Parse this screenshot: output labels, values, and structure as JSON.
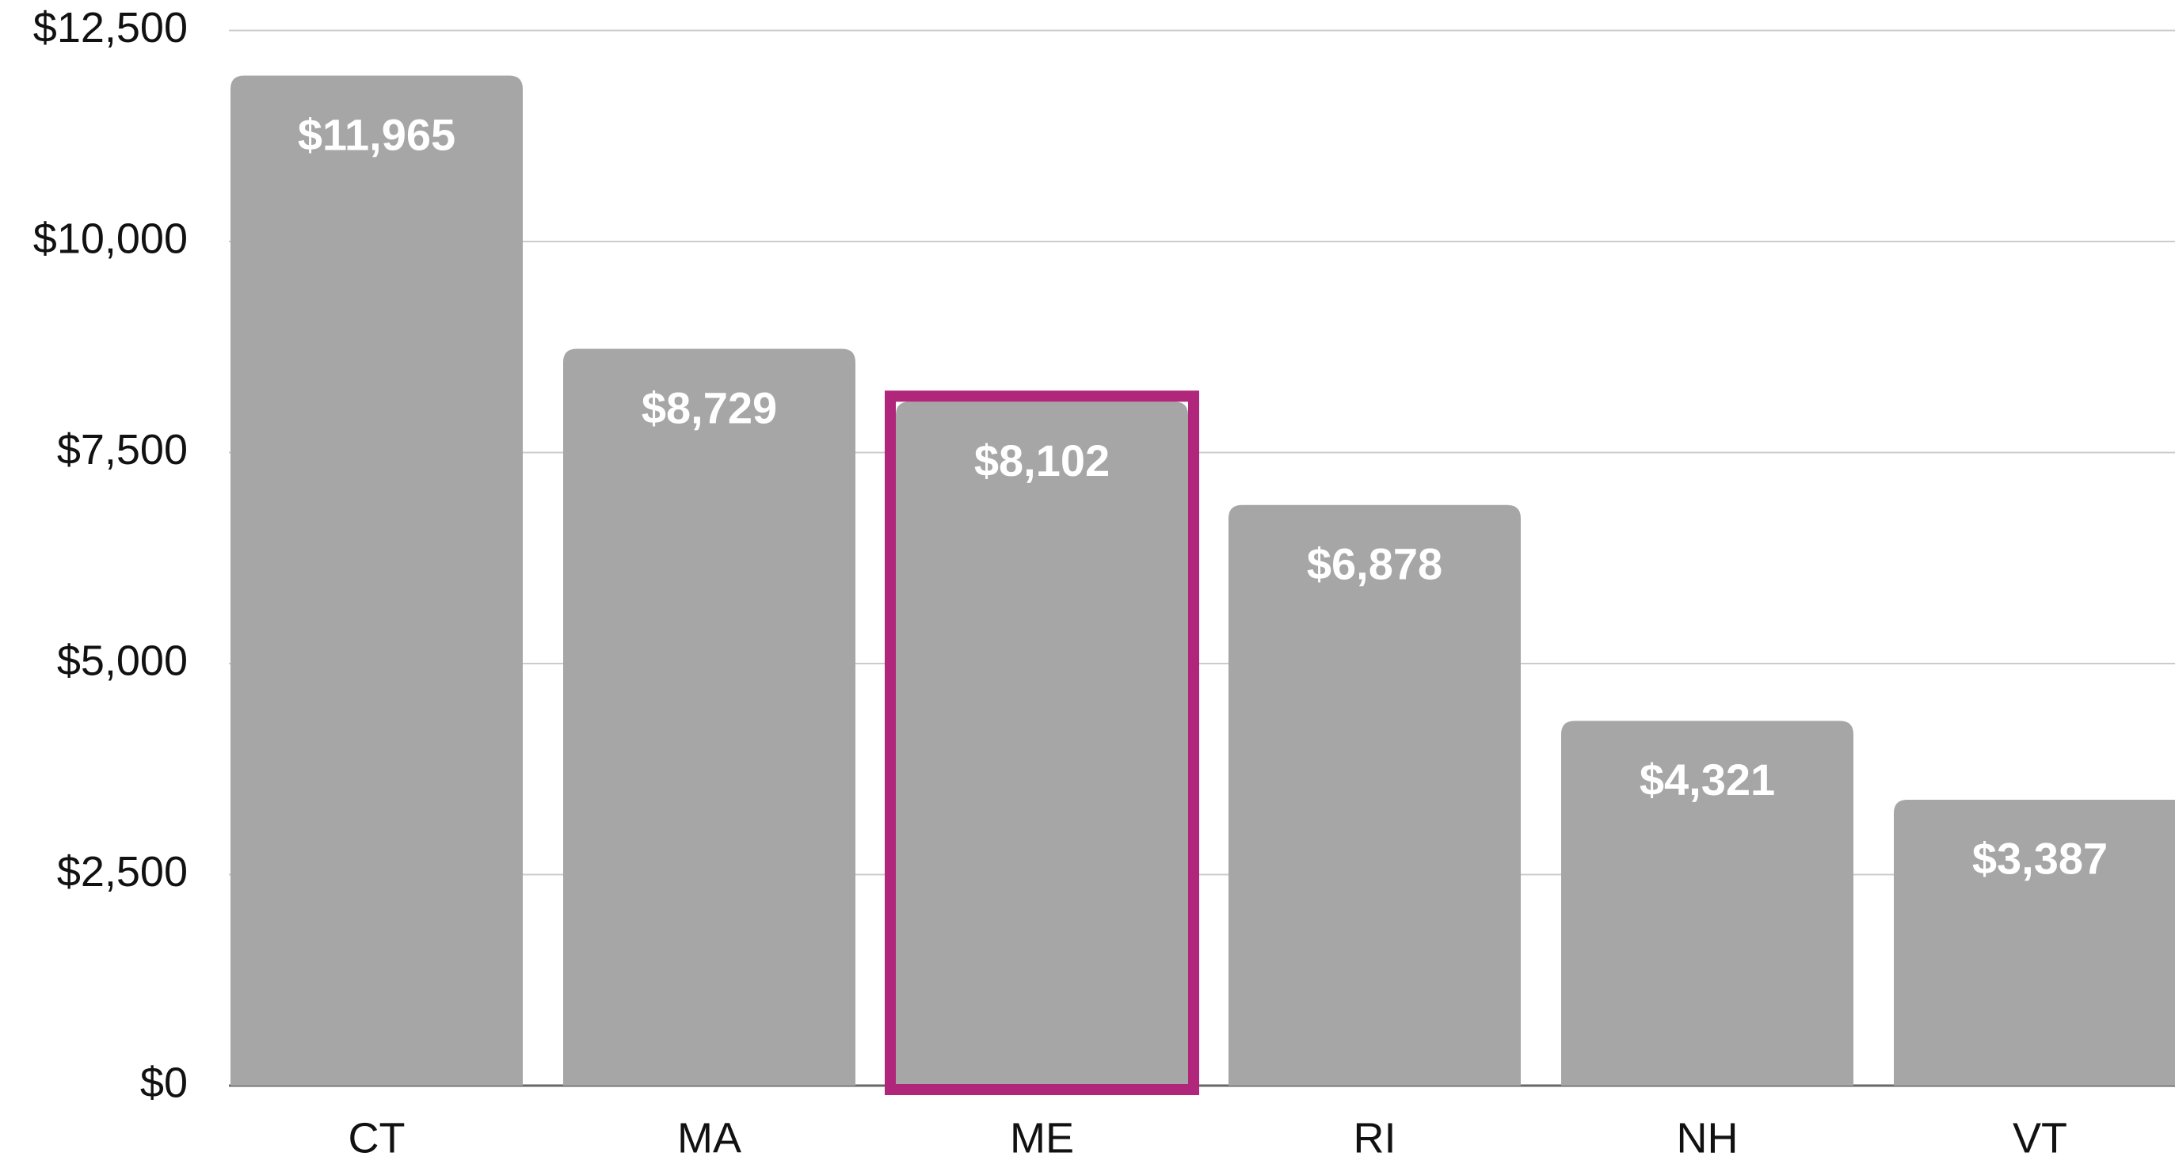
{
  "chart_data": {
    "type": "bar",
    "categories": [
      "CT",
      "MA",
      "ME",
      "RI",
      "NH",
      "VT"
    ],
    "values": [
      11965,
      8729,
      8102,
      6878,
      4321,
      3387
    ],
    "value_labels": [
      "$11,965",
      "$8,729",
      "$8,102",
      "$6,878",
      "$4,321",
      "$3,387"
    ],
    "color": "#a6a6a6",
    "highlight": "ME",
    "highlight_color": "#b0267a",
    "ylim": [
      0,
      12500
    ],
    "yticks": [
      {
        "value": 0,
        "label": "$0"
      },
      {
        "value": 2500,
        "label": "$2,500"
      },
      {
        "value": 5000,
        "label": "$5,000"
      },
      {
        "value": 7500,
        "label": "$7,500"
      },
      {
        "value": 10000,
        "label": "$10,000"
      },
      {
        "value": 12500,
        "label": "$12,500"
      }
    ],
    "grid": true
  }
}
